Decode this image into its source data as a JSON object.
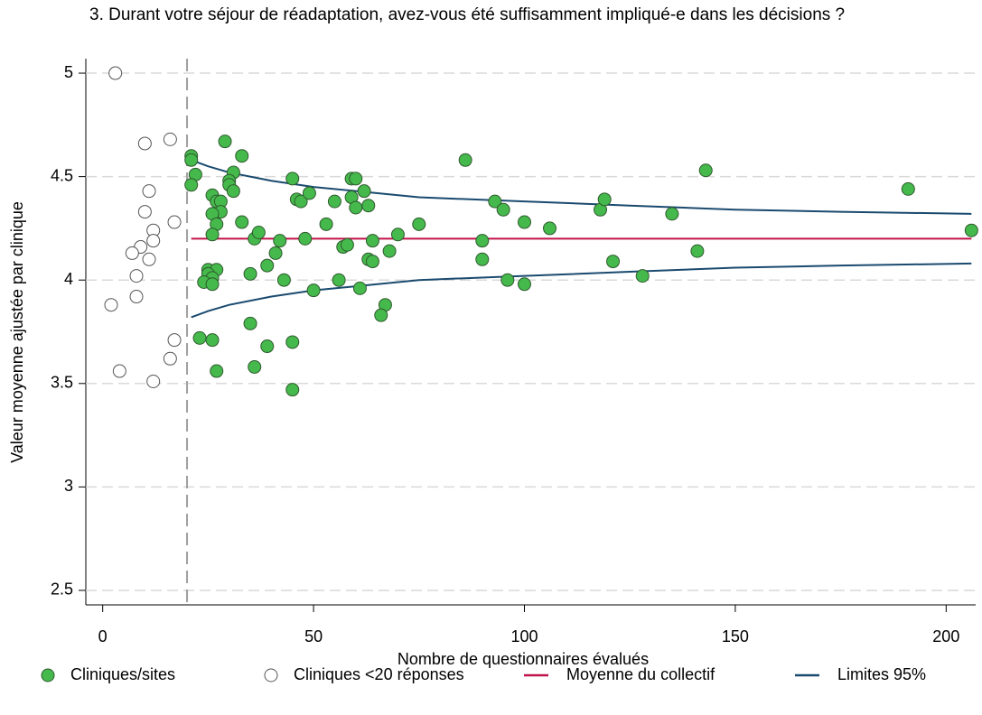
{
  "chart_data": {
    "type": "scatter",
    "title": "3. Durant votre séjour de réadaptation, avez-vous été suffisamment impliqué-e dans les décisions ?",
    "x_label": "Nombre de questionnaires évalués",
    "y_label": "Valeur moyenne ajustée par clinique",
    "xlim": [
      -4,
      207
    ],
    "ylim": [
      2.43,
      5.07
    ],
    "xticks": [
      0,
      50,
      100,
      150,
      200
    ],
    "yticks": [
      2.5,
      3,
      3.5,
      4,
      4.5,
      5
    ],
    "grid": true,
    "cutoff_x": 20,
    "series": [
      {
        "name": "Cliniques/sites",
        "kind": "points",
        "color": "#45b94b",
        "x": [
          21,
          21,
          22,
          21,
          29,
          33,
          31,
          30,
          30,
          31,
          26,
          27,
          28,
          28,
          26,
          27,
          33,
          26,
          36,
          37,
          25,
          27,
          25,
          26,
          24,
          26,
          35,
          39,
          41,
          42,
          43,
          23,
          26,
          35,
          27,
          36,
          39,
          45,
          45,
          45,
          46,
          47,
          49,
          48,
          50,
          53,
          55,
          56,
          57,
          58,
          59,
          60,
          59,
          60,
          62,
          63,
          63,
          64,
          64,
          61,
          67,
          66,
          68,
          70,
          75,
          86,
          93,
          95,
          90,
          90,
          96,
          100,
          100,
          106,
          118,
          119,
          121,
          128,
          135,
          141,
          143,
          191,
          206
        ],
        "values": [
          4.6,
          4.58,
          4.51,
          4.46,
          4.67,
          4.6,
          4.52,
          4.48,
          4.46,
          4.43,
          4.41,
          4.38,
          4.38,
          4.33,
          4.32,
          4.27,
          4.28,
          4.22,
          4.2,
          4.23,
          4.05,
          4.05,
          4.03,
          4.01,
          3.99,
          3.98,
          4.03,
          4.07,
          4.13,
          4.19,
          4.0,
          3.72,
          3.71,
          3.79,
          3.56,
          3.58,
          3.68,
          3.7,
          3.47,
          4.49,
          4.39,
          4.38,
          4.42,
          4.2,
          3.95,
          4.27,
          4.38,
          4.0,
          4.16,
          4.17,
          4.49,
          4.49,
          4.4,
          4.35,
          4.43,
          4.36,
          4.1,
          4.19,
          4.09,
          3.96,
          3.88,
          3.83,
          4.14,
          4.22,
          4.27,
          4.58,
          4.38,
          4.34,
          4.19,
          4.1,
          4.0,
          4.28,
          3.98,
          4.25,
          4.34,
          4.39,
          4.09,
          4.02,
          4.32,
          4.14,
          4.53,
          4.44,
          4.24
        ]
      },
      {
        "name": "Cliniques <20 réponses",
        "kind": "hollow",
        "color": "#ffffff",
        "x": [
          3,
          16,
          10,
          11,
          10,
          12,
          17,
          12,
          9,
          7,
          11,
          8,
          8,
          2,
          17,
          16,
          4,
          12
        ],
        "values": [
          5.0,
          4.68,
          4.66,
          4.43,
          4.33,
          4.24,
          4.28,
          4.19,
          4.16,
          4.13,
          4.1,
          4.02,
          3.92,
          3.88,
          3.71,
          3.62,
          3.56,
          3.51
        ]
      },
      {
        "name": "Moyenne du collectif",
        "kind": "line",
        "color": "#c0134a",
        "x": [
          21,
          206
        ],
        "values": [
          4.2,
          4.2
        ]
      },
      {
        "name": "Limites 95%",
        "kind": "band",
        "color": "#1a4a6f",
        "x": [
          21,
          25,
          30,
          40,
          50,
          60,
          75,
          100,
          125,
          150,
          175,
          206
        ],
        "upper": [
          4.58,
          4.55,
          4.52,
          4.48,
          4.45,
          4.43,
          4.4,
          4.38,
          4.36,
          4.34,
          4.33,
          4.32
        ],
        "lower": [
          3.82,
          3.85,
          3.88,
          3.92,
          3.95,
          3.97,
          4.0,
          4.02,
          4.04,
          4.06,
          4.07,
          4.08
        ]
      }
    ]
  }
}
